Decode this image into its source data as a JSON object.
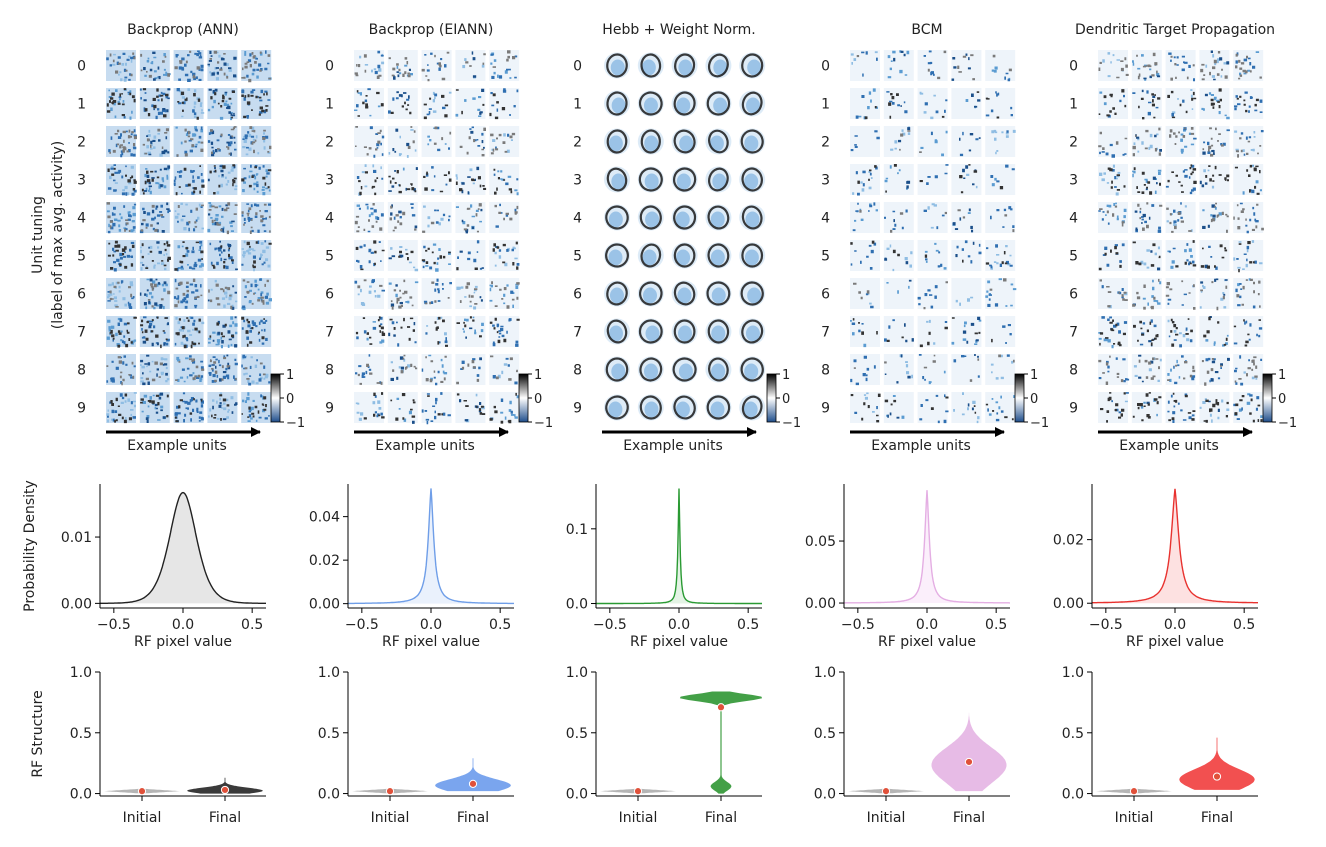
{
  "figure": {
    "ylabel_tuning": "Unit tuning",
    "ylabel_tuning2": "(label of max avg. activity)",
    "xlabel_units": "Example units",
    "digits": [
      "0",
      "1",
      "2",
      "3",
      "4",
      "5",
      "6",
      "7",
      "8",
      "9"
    ],
    "colorbar_ticks": [
      "1",
      "0",
      "−1"
    ],
    "colorbar_colors": {
      "top": "#000000",
      "mid": "#ffffff",
      "bottom": "#1f4e8c"
    }
  },
  "chart_data": [
    {
      "type": "area",
      "role": "rf-pixel-distribution",
      "title": "Backprop (ANN)",
      "xlabel": "RF pixel value",
      "ylabel": "Probability Density",
      "xlim": [
        -0.6,
        0.6
      ],
      "ylim": [
        -0.0007,
        0.018
      ],
      "xticks": [
        "-0.5",
        "0.0",
        "0.5"
      ],
      "yticks": [
        {
          "v": 0.0,
          "label": "0.00"
        },
        {
          "v": 0.01,
          "label": "0.01"
        }
      ],
      "peak": 0.0167,
      "width": 0.13,
      "color": "#222222",
      "fill": "#e6e6e6"
    },
    {
      "type": "area",
      "role": "rf-pixel-distribution",
      "title": "Backprop (EIANN)",
      "xlabel": "RF pixel value",
      "ylabel": "",
      "xlim": [
        -0.6,
        0.6
      ],
      "ylim": [
        -0.002,
        0.055
      ],
      "xticks": [
        "-0.5",
        "0.0",
        "0.5"
      ],
      "yticks": [
        {
          "v": 0.0,
          "label": "0.00"
        },
        {
          "v": 0.02,
          "label": "0.02"
        },
        {
          "v": 0.04,
          "label": "0.04"
        }
      ],
      "peak": 0.053,
      "width": 0.035,
      "color": "#6f9ee8",
      "fill": "#eaf1fc"
    },
    {
      "type": "area",
      "role": "rf-pixel-distribution",
      "title": "Hebb + Weight Norm.",
      "xlabel": "RF pixel value",
      "ylabel": "",
      "xlim": [
        -0.6,
        0.6
      ],
      "ylim": [
        -0.006,
        0.16
      ],
      "xticks": [
        "-0.5",
        "0.0",
        "0.5"
      ],
      "yticks": [
        {
          "v": 0.0,
          "label": "0.0"
        },
        {
          "v": 0.1,
          "label": "0.1"
        }
      ],
      "peak": 0.154,
      "width": 0.012,
      "color": "#2a9a33",
      "fill": "#e4f3e5"
    },
    {
      "type": "area",
      "role": "rf-pixel-distribution",
      "title": "BCM",
      "xlabel": "RF pixel value",
      "ylabel": "",
      "xlim": [
        -0.6,
        0.6
      ],
      "ylim": [
        -0.004,
        0.096
      ],
      "xticks": [
        "-0.5",
        "0.0",
        "0.5"
      ],
      "yticks": [
        {
          "v": 0.0,
          "label": "0.00"
        },
        {
          "v": 0.05,
          "label": "0.05"
        }
      ],
      "peak": 0.091,
      "width": 0.03,
      "color": "#e4aee3",
      "fill": "#fbeffb"
    },
    {
      "type": "area",
      "role": "rf-pixel-distribution",
      "title": "Dendritic Target Propagation",
      "xlabel": "RF pixel value",
      "ylabel": "",
      "xlim": [
        -0.6,
        0.6
      ],
      "ylim": [
        -0.0015,
        0.0375
      ],
      "xticks": [
        "-0.5",
        "0.0",
        "0.5"
      ],
      "yticks": [
        {
          "v": 0.0,
          "label": "0.00"
        },
        {
          "v": 0.02,
          "label": "0.02"
        }
      ],
      "peak": 0.036,
      "width": 0.05,
      "color": "#e8322f",
      "fill": "#fde1e1"
    },
    {
      "type": "violin",
      "role": "rf-structure",
      "categories": [
        "Initial",
        "Final"
      ],
      "ylabel": "RF Structure",
      "ylim": [
        -0.02,
        1.0
      ],
      "yticks": [
        {
          "v": 0.0,
          "label": "0.0"
        },
        {
          "v": 0.5,
          "label": "0.5"
        },
        {
          "v": 1.0,
          "label": "1.0"
        }
      ],
      "panels": [
        {
          "initial": {
            "median": 0.02,
            "min": 0.0,
            "max": 0.04
          },
          "final": {
            "median": 0.03,
            "min": 0.0,
            "max": 0.13,
            "shape": "skew"
          },
          "color": "#3a3a3a"
        },
        {
          "initial": {
            "median": 0.02,
            "min": 0.0,
            "max": 0.04
          },
          "final": {
            "median": 0.08,
            "min": 0.02,
            "max": 0.29,
            "shape": "skew"
          },
          "color": "#7aa5ee"
        },
        {
          "initial": {
            "median": 0.02,
            "min": 0.0,
            "max": 0.04
          },
          "final": {
            "median": 0.71,
            "min": 0.0,
            "max": 0.84,
            "shape": "bimodal"
          },
          "color": "#43a047"
        },
        {
          "initial": {
            "median": 0.02,
            "min": 0.0,
            "max": 0.04
          },
          "final": {
            "median": 0.26,
            "min": 0.02,
            "max": 0.67,
            "shape": "broad"
          },
          "color": "#e7bbe6"
        },
        {
          "initial": {
            "median": 0.02,
            "min": 0.0,
            "max": 0.04
          },
          "final": {
            "median": 0.14,
            "min": 0.03,
            "max": 0.46,
            "shape": "skew"
          },
          "color": "#f25050"
        }
      ],
      "initial_color": "#b5b5b5",
      "median_color": "#e0513a"
    }
  ]
}
